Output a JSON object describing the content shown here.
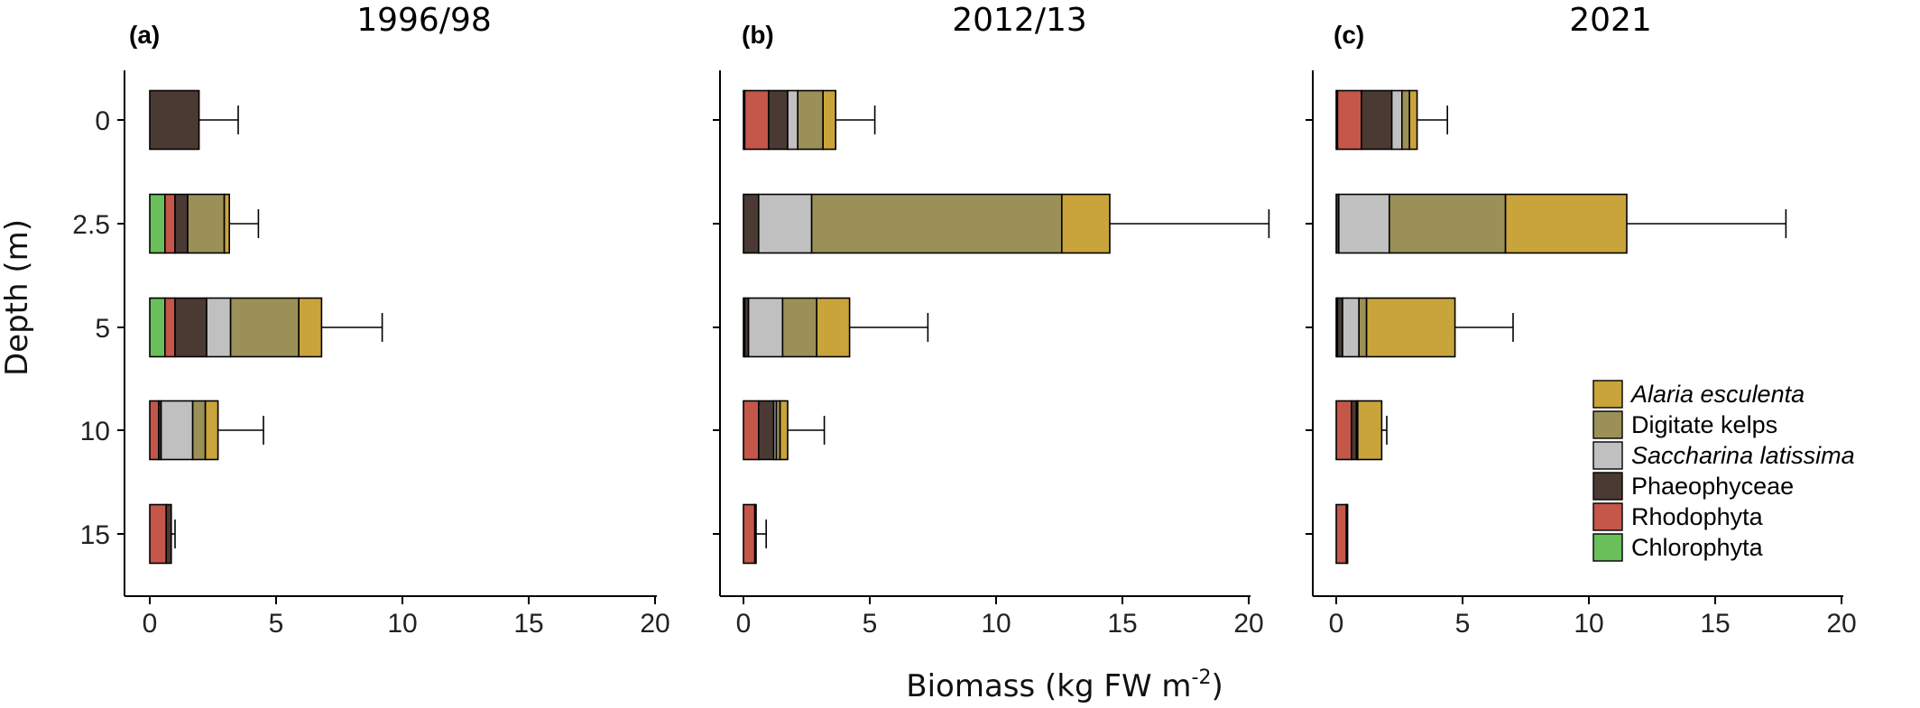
{
  "figure": {
    "ylabel": "Depth (m)",
    "xlabel_prefix": "Biomass (kg FW m",
    "xlabel_sup": "-2",
    "xlabel_suffix": ")"
  },
  "chart_data": [
    {
      "type": "bar",
      "orientation": "horizontal",
      "stacked": true,
      "panel": "(a)",
      "title": "1996/98",
      "categories": [
        "0",
        "2.5",
        "5",
        "10",
        "15"
      ],
      "xlim": [
        0,
        20
      ],
      "xticks": [
        "0",
        "5",
        "10",
        "15",
        "20"
      ],
      "series": [
        {
          "name": "Chlorophyta",
          "values": [
            0,
            0.6,
            0.6,
            0,
            0
          ]
        },
        {
          "name": "Rhodophyta",
          "values": [
            0,
            0.4,
            0.4,
            0.35,
            0.65
          ]
        },
        {
          "name": "Phaeophyceae",
          "values": [
            1.95,
            0.5,
            1.25,
            0.1,
            0.2
          ]
        },
        {
          "name": "Saccharina latissima",
          "values": [
            0,
            0,
            0.95,
            1.25,
            0
          ]
        },
        {
          "name": "Digitate kelps",
          "values": [
            0,
            1.45,
            2.7,
            0.5,
            0
          ]
        },
        {
          "name": "Alaria esculenta",
          "values": [
            0,
            0.2,
            0.9,
            0.5,
            0
          ]
        }
      ],
      "error": [
        3.5,
        4.3,
        9.2,
        4.5,
        1.0
      ]
    },
    {
      "type": "bar",
      "orientation": "horizontal",
      "stacked": true,
      "panel": "(b)",
      "title": "2012/13",
      "categories": [
        "0",
        "2.5",
        "5",
        "10",
        "15"
      ],
      "xlim": [
        0,
        20
      ],
      "xticks": [
        "0",
        "5",
        "10",
        "15",
        "20"
      ],
      "series": [
        {
          "name": "Chlorophyta",
          "values": [
            0.05,
            0,
            0,
            0,
            0
          ]
        },
        {
          "name": "Rhodophyta",
          "values": [
            0.95,
            0,
            0.05,
            0.6,
            0.45
          ]
        },
        {
          "name": "Phaeophyceae",
          "values": [
            0.75,
            0.6,
            0.15,
            0.6,
            0.05
          ]
        },
        {
          "name": "Saccharina latissima",
          "values": [
            0.4,
            2.1,
            1.35,
            0.1,
            0
          ]
        },
        {
          "name": "Digitate kelps",
          "values": [
            1.0,
            9.9,
            1.35,
            0.15,
            0
          ]
        },
        {
          "name": "Alaria esculenta",
          "values": [
            0.5,
            1.9,
            1.3,
            0.3,
            0
          ]
        }
      ],
      "error": [
        5.2,
        20.8,
        7.3,
        3.2,
        0.9
      ]
    },
    {
      "type": "bar",
      "orientation": "horizontal",
      "stacked": true,
      "panel": "(c)",
      "title": "2021",
      "categories": [
        "0",
        "2.5",
        "5",
        "10",
        "15"
      ],
      "xlim": [
        0,
        20
      ],
      "xticks": [
        "0",
        "5",
        "10",
        "15",
        "20"
      ],
      "series": [
        {
          "name": "Chlorophyta",
          "values": [
            0.05,
            0,
            0,
            0,
            0
          ]
        },
        {
          "name": "Rhodophyta",
          "values": [
            0.95,
            0,
            0.05,
            0.6,
            0.4
          ]
        },
        {
          "name": "Phaeophyceae",
          "values": [
            1.2,
            0.1,
            0.2,
            0.2,
            0.05
          ]
        },
        {
          "name": "Saccharina latissima",
          "values": [
            0.4,
            2.0,
            0.65,
            0,
            0
          ]
        },
        {
          "name": "Digitate kelps",
          "values": [
            0.3,
            4.6,
            0.3,
            0.05,
            0
          ]
        },
        {
          "name": "Alaria esculenta",
          "values": [
            0.3,
            4.8,
            3.5,
            0.95,
            0
          ]
        }
      ],
      "error": [
        4.4,
        17.8,
        7.0,
        2.0,
        0.45
      ]
    }
  ],
  "legend": {
    "placement": "right, inside panel (c)",
    "items": [
      {
        "name": "Alaria esculenta",
        "color": "#C9A43A",
        "italic": true
      },
      {
        "name": "Digitate kelps",
        "color": "#9B9058",
        "italic": false
      },
      {
        "name": "Saccharina latissima",
        "color": "#C0C0C0",
        "italic": true
      },
      {
        "name": "Phaeophyceae",
        "color": "#4B3A33",
        "italic": false
      },
      {
        "name": "Rhodophyta",
        "color": "#C4564A",
        "italic": false
      },
      {
        "name": "Chlorophyta",
        "color": "#6ABF5B",
        "italic": false
      }
    ]
  },
  "colors": {
    "Chlorophyta": "#6ABF5B",
    "Rhodophyta": "#C4564A",
    "Phaeophyceae": "#4B3A33",
    "Saccharina latissima": "#C0C0C0",
    "Digitate kelps": "#9B9058",
    "Alaria esculenta": "#C9A43A"
  }
}
